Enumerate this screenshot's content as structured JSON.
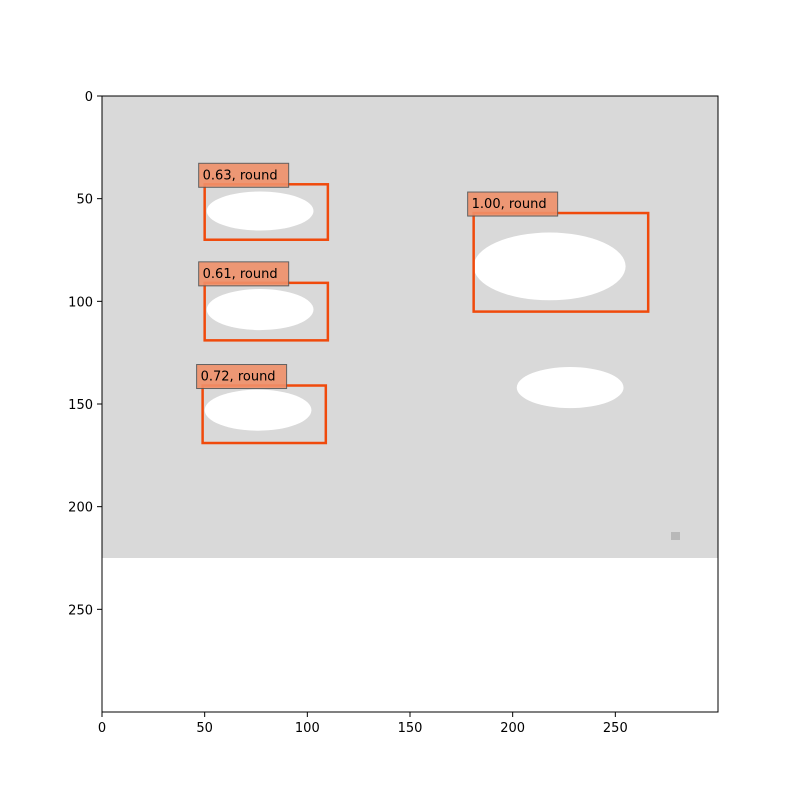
{
  "chart_data": {
    "type": "image-detections",
    "xlim": [
      0,
      300
    ],
    "ylim": [
      300,
      0
    ],
    "x_ticks": [
      0,
      50,
      100,
      150,
      200,
      250
    ],
    "y_ticks": [
      0,
      50,
      100,
      150,
      200,
      250
    ],
    "image": {
      "width": 300,
      "height": 225,
      "background": "#d9d9d9",
      "blobs": [
        {
          "cx": 77,
          "cy": 56,
          "rx": 26,
          "ry": 9.5
        },
        {
          "cx": 77,
          "cy": 104,
          "rx": 26,
          "ry": 10
        },
        {
          "cx": 76,
          "cy": 153,
          "rx": 26,
          "ry": 10
        },
        {
          "cx": 218,
          "cy": 83,
          "rx": 37,
          "ry": 16.5
        },
        {
          "cx": 228,
          "cy": 142,
          "rx": 26,
          "ry": 10
        }
      ]
    },
    "detections": [
      {
        "label": "0.63, round",
        "x0": 50,
        "y0": 43,
        "x1": 110,
        "y1": 70
      },
      {
        "label": "0.61, round",
        "x0": 50,
        "y0": 91,
        "x1": 110,
        "y1": 119
      },
      {
        "label": "0.72, round",
        "x0": 49,
        "y0": 141,
        "x1": 109,
        "y1": 169
      },
      {
        "label": "1.00, round",
        "x0": 181,
        "y0": 57,
        "x1": 266,
        "y1": 105
      }
    ],
    "colors": {
      "box": "#f04a0c",
      "label_bg": "#f0906a",
      "blob": "#ffffff",
      "axis": "#000000"
    }
  }
}
